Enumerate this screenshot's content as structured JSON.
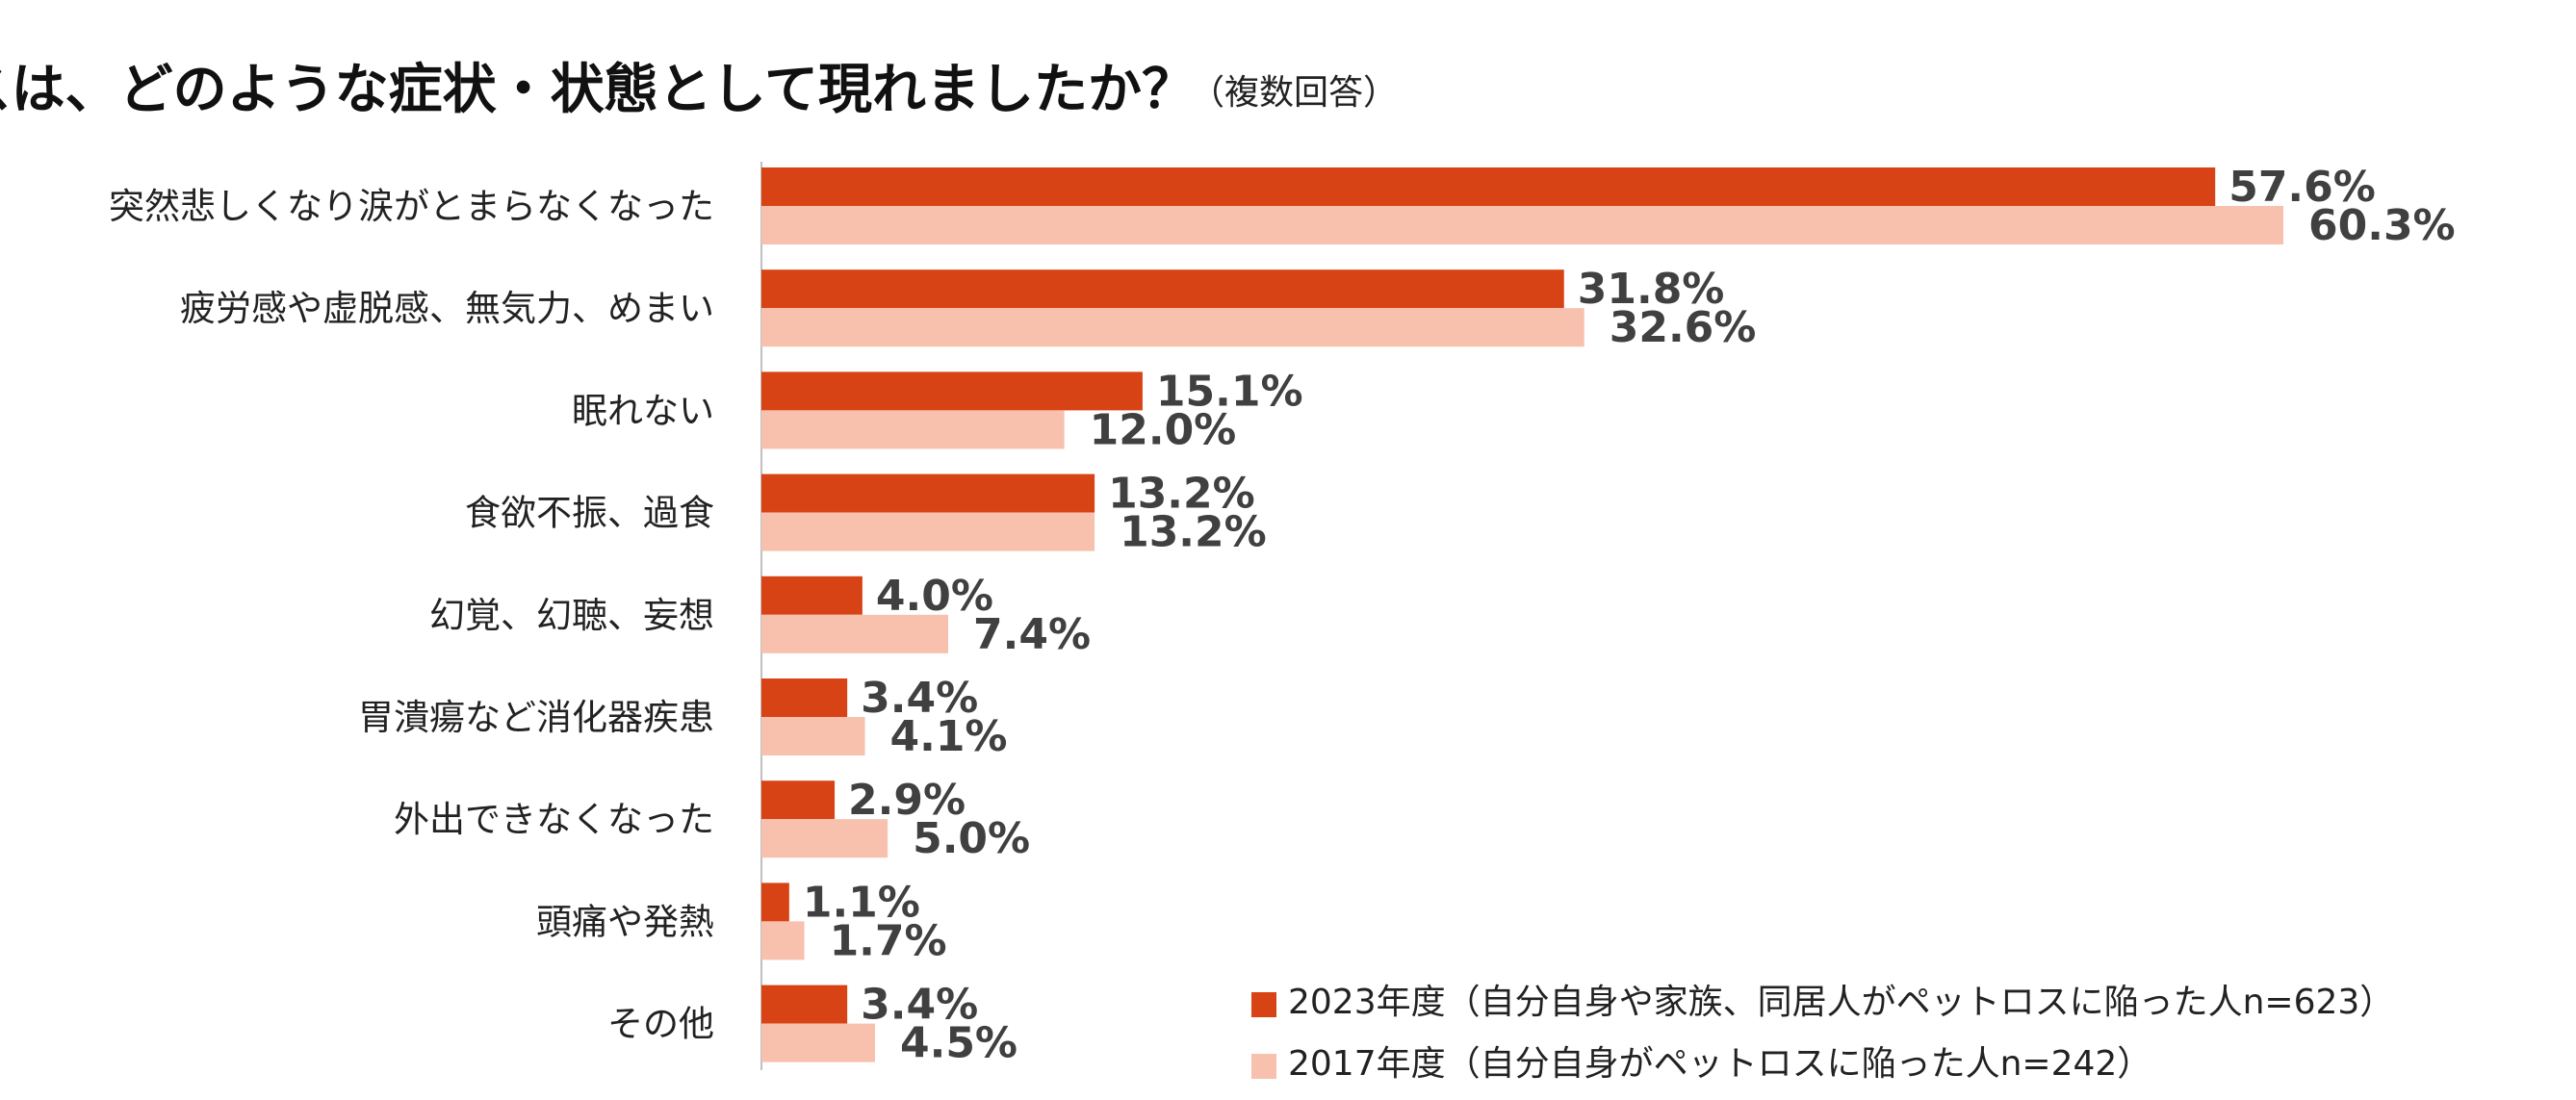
{
  "chart_data": {
    "type": "bar",
    "orientation": "horizontal",
    "title": "ペットロスは、どのような症状・状態として現れましたか？",
    "subtitle": "（複数回答）",
    "categories": [
      "突然悲しくなり涙がとまらなくなった",
      "疲労感や虚脱感、無気力、めまい",
      "眠れない",
      "食欲不振、過食",
      "幻覚、幻聴、妄想",
      "胃潰瘍など消化器疾患",
      "外出できなくなった",
      "頭痛や発熱",
      "その他"
    ],
    "series": [
      {
        "name": "2023年度（自分自身や家族、同居人がペットロスに陥った人n=623）",
        "color": "#D84315",
        "values": [
          57.6,
          31.8,
          15.1,
          13.2,
          4.0,
          3.4,
          2.9,
          1.1,
          3.4
        ],
        "labels": [
          "57.6%",
          "31.8%",
          "15.1%",
          "13.2%",
          "4.0%",
          "3.4%",
          "2.9%",
          "1.1%",
          "3.4%"
        ]
      },
      {
        "name": "2017年度（自分自身がペットロスに陥った人n=242）",
        "color": "#F7C1AE",
        "values": [
          60.3,
          32.6,
          12.0,
          13.2,
          7.4,
          4.1,
          5.0,
          1.7,
          4.5
        ],
        "labels": [
          "60.3%",
          "32.6%",
          "12.0%",
          "13.2%",
          "7.4%",
          "4.1%",
          "5.0%",
          "1.7%",
          "4.5%"
        ]
      }
    ],
    "xlim": [
      0,
      60.3
    ],
    "grid": false,
    "legend_position": "bottom-right",
    "axis_color": "#BFBFBF"
  }
}
